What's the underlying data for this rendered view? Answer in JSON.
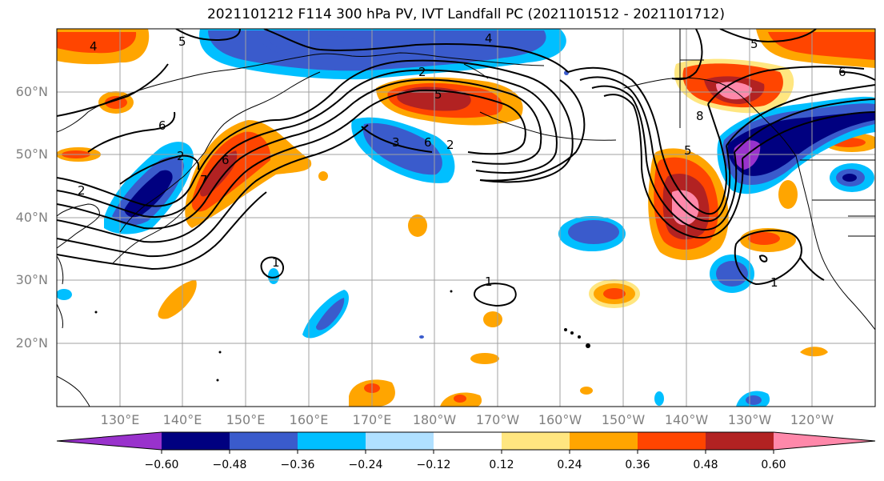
{
  "title": "2021101212 F114 300 hPa PV, IVT Landfall PC (2021101512 - 2021101712)",
  "latitude_labels": [
    "60°N",
    "50°N",
    "40°N",
    "30°N",
    "20°N"
  ],
  "longitude_labels": [
    "130°E",
    "140°E",
    "150°E",
    "160°E",
    "170°E",
    "180°W",
    "170°W",
    "160°W",
    "150°W",
    "140°W",
    "130°W",
    "120°W"
  ],
  "colorbar": {
    "tick_labels": [
      "−0.60",
      "−0.48",
      "−0.36",
      "−0.24",
      "−0.12",
      "0.12",
      "0.24",
      "0.36",
      "0.48",
      "0.60"
    ],
    "colors": [
      "#9932cc",
      "#000080",
      "#3a5bcc",
      "#00bfff",
      "#b0e0ff",
      "#ffffff",
      "#ffe680",
      "#ffa500",
      "#ff4500",
      "#b22222",
      "#ff88aa"
    ]
  },
  "contour_labels": [
    "4",
    "5",
    "4",
    "2",
    "5",
    "2",
    "3",
    "6",
    "2",
    "7",
    "6",
    "1",
    "1",
    "6",
    "5",
    "8",
    "1",
    "5",
    "6",
    "2"
  ],
  "colors": {
    "gridline": "#a0a0a0",
    "coast": "#000000",
    "contour": "#000000"
  }
}
